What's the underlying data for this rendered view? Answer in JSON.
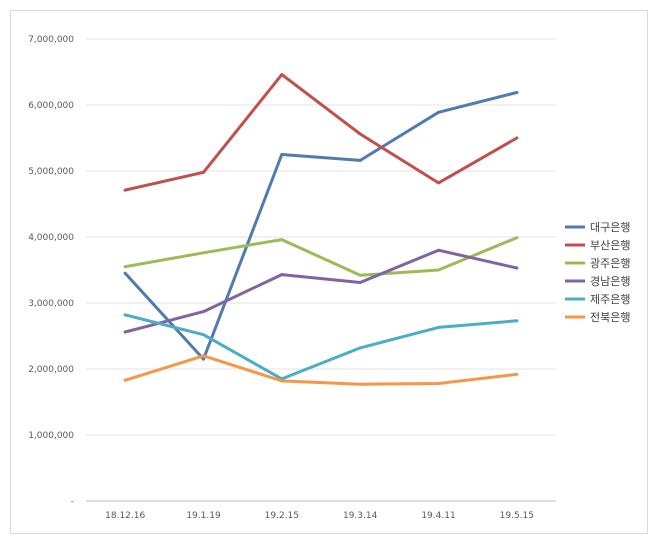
{
  "chart_data": {
    "type": "line",
    "title": "",
    "xlabel": "",
    "ylabel": "",
    "categories": [
      "18.12.16",
      "19.1.19",
      "19.2.15",
      "19.3.14",
      "19.4.11",
      "19.5.15"
    ],
    "ylim": [
      0,
      7000000
    ],
    "yticks": [
      {
        "value": 0,
        "label": "-"
      },
      {
        "value": 1000000,
        "label": "1,000,000"
      },
      {
        "value": 2000000,
        "label": "2,000,000"
      },
      {
        "value": 3000000,
        "label": "3,000,000"
      },
      {
        "value": 4000000,
        "label": "4,000,000"
      },
      {
        "value": 5000000,
        "label": "5,000,000"
      },
      {
        "value": 6000000,
        "label": "6,000,000"
      },
      {
        "value": 7000000,
        "label": "7,000,000"
      }
    ],
    "grid": true,
    "legend_position": "right",
    "series": [
      {
        "name": "대구은행",
        "color": "#4f7bae",
        "values": [
          3450000,
          2150000,
          5250000,
          5160000,
          5890000,
          6190000
        ]
      },
      {
        "name": "부산은행",
        "color": "#c0504d",
        "values": [
          4710000,
          4980000,
          6460000,
          5560000,
          4820000,
          5500000
        ]
      },
      {
        "name": "광주은행",
        "color": "#9bbb59",
        "values": [
          3550000,
          3760000,
          3960000,
          3420000,
          3500000,
          3990000
        ]
      },
      {
        "name": "경남은행",
        "color": "#8064a2",
        "values": [
          2560000,
          2870000,
          3430000,
          3310000,
          3800000,
          3530000
        ]
      },
      {
        "name": "제주은행",
        "color": "#4bacc6",
        "values": [
          2820000,
          2520000,
          1850000,
          2320000,
          2630000,
          2730000
        ]
      },
      {
        "name": "전북은행",
        "color": "#f79646",
        "values": [
          1830000,
          2200000,
          1820000,
          1770000,
          1780000,
          1920000
        ]
      }
    ]
  }
}
